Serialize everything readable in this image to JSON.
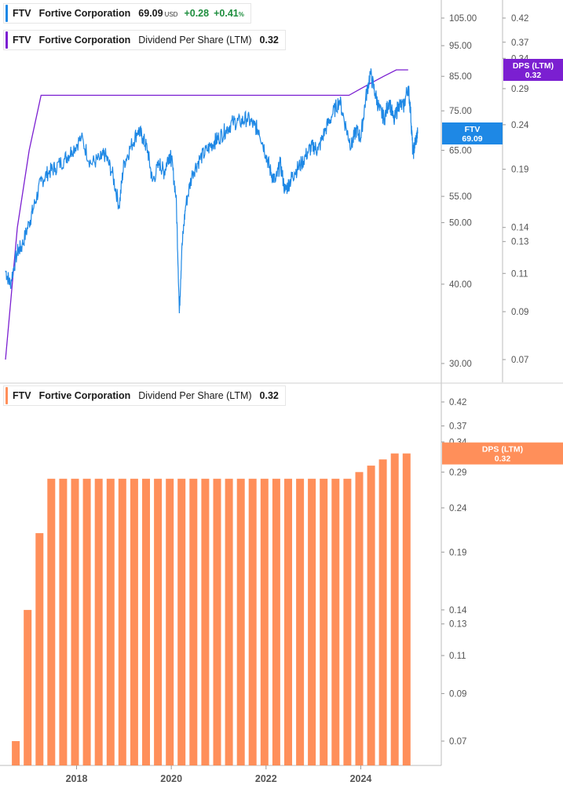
{
  "legends": {
    "price": {
      "ticker": "FTV",
      "company": "Fortive Corporation",
      "price": "69.09",
      "currency": "USD",
      "change": "+0.28",
      "change_pct": "+0.41",
      "pct_sign": "%"
    },
    "dps_top": {
      "ticker": "FTV",
      "company": "Fortive Corporation",
      "metric": "Dividend Per Share (LTM)",
      "value": "0.32"
    },
    "dps_bottom": {
      "ticker": "FTV",
      "company": "Fortive Corporation",
      "metric": "Dividend Per Share (LTM)",
      "value": "0.32"
    }
  },
  "colors": {
    "price_line": "#1e88e5",
    "dps_line": "#7b1fd1",
    "dps_bars": "#ff8f5a",
    "positive": "#1e8e3e"
  },
  "chart_data": [
    {
      "type": "line",
      "name": "price-chart",
      "scale": "log",
      "price_axis": {
        "ticks": [
          105,
          95,
          85,
          75,
          65,
          55,
          50,
          40,
          30
        ],
        "labels": [
          "105.00",
          "95.00",
          "85.00",
          "75.00",
          "65.00",
          "55.00",
          "50.00",
          "40.00",
          "30.00"
        ]
      },
      "dps_axis": {
        "ticks": [
          0.42,
          0.37,
          0.34,
          0.29,
          0.24,
          0.19,
          0.14,
          0.13,
          0.11,
          0.09,
          0.07
        ],
        "labels": [
          "0.42",
          "0.37",
          "0.34",
          "0.29",
          "0.24",
          "0.19",
          "0.14",
          "0.13",
          "0.11",
          "0.09",
          "0.07"
        ]
      },
      "price_series": {
        "name": "FTV",
        "x": [
          2016.5,
          2016.6,
          2016.75,
          2016.85,
          2017.0,
          2017.1,
          2017.25,
          2017.4,
          2017.55,
          2017.75,
          2017.9,
          2018.1,
          2018.3,
          2018.5,
          2018.6,
          2018.75,
          2018.9,
          2019.0,
          2019.15,
          2019.3,
          2019.4,
          2019.5,
          2019.6,
          2019.75,
          2019.85,
          2019.95,
          2020.0,
          2020.1,
          2020.17,
          2020.22,
          2020.3,
          2020.45,
          2020.6,
          2020.75,
          2020.9,
          2021.0,
          2021.15,
          2021.3,
          2021.45,
          2021.6,
          2021.75,
          2021.85,
          2022.0,
          2022.1,
          2022.2,
          2022.3,
          2022.4,
          2022.5,
          2022.6,
          2022.75,
          2022.9,
          2023.0,
          2023.1,
          2023.25,
          2023.4,
          2023.55,
          2023.7,
          2023.8,
          2023.9,
          2024.0,
          2024.1,
          2024.2,
          2024.3,
          2024.4,
          2024.5,
          2024.6,
          2024.7,
          2024.8,
          2024.9,
          2025.0,
          2025.05,
          2025.1,
          2025.15,
          2025.2
        ],
        "y": [
          42,
          40,
          45,
          46,
          50,
          53,
          58,
          60,
          61,
          63,
          65,
          68,
          62,
          63,
          64,
          60,
          53,
          62,
          66,
          70,
          68,
          65,
          58,
          62,
          60,
          64,
          63,
          55,
          36,
          45,
          53,
          60,
          63,
          65,
          67,
          68,
          70,
          72,
          72,
          73,
          71,
          70,
          64,
          60,
          58,
          62,
          56,
          58,
          60,
          62,
          65,
          66,
          65,
          70,
          74,
          78,
          70,
          66,
          70,
          68,
          78,
          86,
          80,
          75,
          73,
          78,
          72,
          77,
          76,
          82,
          75,
          64,
          67,
          69.09
        ]
      },
      "dps_series": {
        "name": "DPS (LTM)",
        "x": [
          2016.5,
          2016.75,
          2017.0,
          2017.25,
          2017.5,
          2018.0,
          2019.0,
          2020.0,
          2021.0,
          2022.0,
          2023.0,
          2023.75,
          2024.0,
          2024.25,
          2024.5,
          2024.75,
          2025.0
        ],
        "y": [
          0.07,
          0.14,
          0.21,
          0.28,
          0.28,
          0.28,
          0.28,
          0.28,
          0.28,
          0.28,
          0.28,
          0.28,
          0.29,
          0.3,
          0.31,
          0.32,
          0.32
        ]
      },
      "price_label": {
        "name": "FTV",
        "value": "69.09"
      },
      "dps_label": {
        "name": "DPS (LTM)",
        "value": "0.32"
      }
    },
    {
      "type": "bar",
      "name": "dps-bar-chart",
      "scale": "log",
      "dps_axis": {
        "ticks": [
          0.42,
          0.37,
          0.34,
          0.29,
          0.24,
          0.19,
          0.14,
          0.13,
          0.11,
          0.09,
          0.07
        ],
        "labels": [
          "0.42",
          "0.37",
          "0.34",
          "0.29",
          "0.24",
          "0.19",
          "0.14",
          "0.13",
          "0.11",
          "0.09",
          "0.07"
        ]
      },
      "x_labels": [
        "2018",
        "2020",
        "2022",
        "2024"
      ],
      "x_label_years": [
        2018,
        2020,
        2022,
        2024
      ],
      "bars": {
        "name": "DPS (LTM)",
        "x": [
          2016.75,
          2017.0,
          2017.25,
          2017.5,
          2017.75,
          2018.0,
          2018.25,
          2018.5,
          2018.75,
          2019.0,
          2019.25,
          2019.5,
          2019.75,
          2020.0,
          2020.25,
          2020.5,
          2020.75,
          2021.0,
          2021.25,
          2021.5,
          2021.75,
          2022.0,
          2022.25,
          2022.5,
          2022.75,
          2023.0,
          2023.25,
          2023.5,
          2023.75,
          2024.0,
          2024.25,
          2024.5,
          2024.75,
          2025.0
        ],
        "values": [
          0.07,
          0.14,
          0.21,
          0.28,
          0.28,
          0.28,
          0.28,
          0.28,
          0.28,
          0.28,
          0.28,
          0.28,
          0.28,
          0.28,
          0.28,
          0.28,
          0.28,
          0.28,
          0.28,
          0.28,
          0.28,
          0.28,
          0.28,
          0.28,
          0.28,
          0.28,
          0.28,
          0.28,
          0.28,
          0.29,
          0.3,
          0.31,
          0.32,
          0.32
        ]
      },
      "dps_label": {
        "name": "DPS (LTM)",
        "value": "0.32"
      }
    }
  ]
}
